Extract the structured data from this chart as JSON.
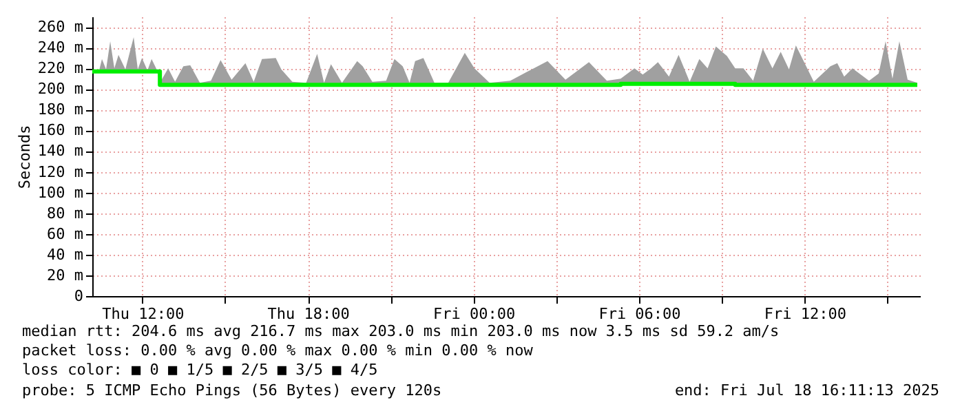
{
  "chart_data": {
    "type": "line",
    "ylabel": "Seconds",
    "x": [
      "2025-07-17T10:11",
      "2025-07-17T10:26",
      "2025-07-17T10:32",
      "2025-07-17T10:41",
      "2025-07-17T10:50",
      "2025-07-17T10:59",
      "2025-07-17T11:08",
      "2025-07-17T11:23",
      "2025-07-17T11:41",
      "2025-07-17T11:50",
      "2025-07-17T11:59",
      "2025-07-17T12:11",
      "2025-07-17T12:20",
      "2025-07-17T12:32",
      "2025-07-17T12:38",
      "2025-07-17T12:56",
      "2025-07-17T13:11",
      "2025-07-17T13:29",
      "2025-07-17T13:44",
      "2025-07-17T14:05",
      "2025-07-17T14:29",
      "2025-07-17T14:50",
      "2025-07-17T15:14",
      "2025-07-17T15:44",
      "2025-07-17T16:02",
      "2025-07-17T16:20",
      "2025-07-17T16:50",
      "2025-07-17T17:02",
      "2025-07-17T17:26",
      "2025-07-17T17:56",
      "2025-07-17T18:20",
      "2025-07-17T18:35",
      "2025-07-17T18:50",
      "2025-07-17T19:14",
      "2025-07-17T19:47",
      "2025-07-17T19:59",
      "2025-07-17T20:20",
      "2025-07-17T20:50",
      "2025-07-17T21:08",
      "2025-07-17T21:26",
      "2025-07-17T21:41",
      "2025-07-17T21:53",
      "2025-07-17T22:11",
      "2025-07-17T22:35",
      "2025-07-17T23:05",
      "2025-07-17T23:41",
      "2025-07-18T00:02",
      "2025-07-18T00:35",
      "2025-07-18T01:20",
      "2025-07-18T02:11",
      "2025-07-18T02:41",
      "2025-07-18T03:20",
      "2025-07-18T04:11",
      "2025-07-18T04:50",
      "2025-07-18T05:20",
      "2025-07-18T05:50",
      "2025-07-18T06:08",
      "2025-07-18T06:26",
      "2025-07-18T06:41",
      "2025-07-18T07:05",
      "2025-07-18T07:26",
      "2025-07-18T07:50",
      "2025-07-18T08:11",
      "2025-07-18T08:29",
      "2025-07-18T08:47",
      "2025-07-18T09:11",
      "2025-07-18T09:29",
      "2025-07-18T09:47",
      "2025-07-18T10:08",
      "2025-07-18T10:29",
      "2025-07-18T10:50",
      "2025-07-18T11:08",
      "2025-07-18T11:26",
      "2025-07-18T11:41",
      "2025-07-18T12:20",
      "2025-07-18T12:56",
      "2025-07-18T13:11",
      "2025-07-18T13:26",
      "2025-07-18T13:44",
      "2025-07-18T14:20",
      "2025-07-18T14:41",
      "2025-07-18T14:56",
      "2025-07-18T15:11",
      "2025-07-18T15:26",
      "2025-07-18T15:44",
      "2025-07-18T16:05"
    ],
    "series": [
      {
        "type": "step",
        "color": "#00ee00",
        "values": [
          217,
          217,
          217,
          217,
          217,
          217,
          217,
          217,
          217,
          217,
          217,
          217,
          217,
          217,
          204,
          204,
          204,
          204,
          204,
          204,
          204,
          204,
          204,
          204,
          204,
          204,
          204,
          204,
          204,
          204,
          204,
          204,
          204,
          204,
          204,
          204,
          204,
          204,
          204,
          204,
          204,
          204,
          204,
          204,
          204,
          204,
          204,
          204,
          204,
          204,
          204,
          204,
          204,
          204,
          205,
          205,
          205,
          205,
          205,
          205,
          205,
          205,
          205,
          205,
          205,
          205,
          204,
          204,
          204,
          204,
          204,
          204,
          204,
          204,
          204,
          204,
          204,
          204,
          204,
          204,
          204,
          204,
          204,
          204,
          204,
          204
        ],
        "lower": [
          217,
          217,
          217,
          217,
          217,
          217,
          217,
          217,
          217,
          217,
          217,
          217,
          217,
          217,
          204,
          204,
          204,
          204,
          204,
          204,
          204,
          204,
          204,
          204,
          204,
          204,
          204,
          204,
          204,
          204,
          204,
          204,
          204,
          204,
          204,
          204,
          204,
          204,
          204,
          204,
          204,
          204,
          204,
          204,
          204,
          204,
          204,
          204,
          204,
          204,
          204,
          204,
          204,
          204,
          205,
          205,
          205,
          205,
          205,
          205,
          205,
          205,
          205,
          205,
          205,
          205,
          204,
          204,
          204,
          204,
          204,
          204,
          204,
          204,
          204,
          204,
          204,
          204,
          204,
          204,
          204,
          204,
          204,
          204,
          204,
          204
        ],
        "upper": [
          219,
          218,
          229,
          219,
          246,
          220,
          233,
          219,
          250,
          219,
          230,
          218,
          229,
          218,
          206,
          220,
          207,
          222,
          223,
          206,
          208,
          228,
          209,
          225,
          207,
          229,
          230,
          219,
          207,
          206,
          234,
          206,
          224,
          206,
          227,
          222,
          207,
          208,
          229,
          222,
          206,
          227,
          230,
          206,
          206,
          235,
          220,
          206,
          208,
          220,
          227,
          209,
          226,
          208,
          210,
          220,
          214,
          220,
          226,
          212,
          233,
          207,
          229,
          220,
          241,
          232,
          220,
          220,
          208,
          239,
          220,
          236,
          219,
          242,
          207,
          222,
          225,
          212,
          220,
          208,
          215,
          246,
          210,
          246,
          209,
          206
        ]
      }
    ],
    "xlim": [
      "2025-07-17T10:11",
      "2025-07-18T16:11"
    ],
    "xticks": [
      {
        "value": "2025-07-17T12:00",
        "label": "Thu 12:00"
      },
      {
        "value": "2025-07-17T15:00",
        "label": null
      },
      {
        "value": "2025-07-17T18:00",
        "label": "Thu 18:00"
      },
      {
        "value": "2025-07-17T21:00",
        "label": null
      },
      {
        "value": "2025-07-18T00:00",
        "label": "Fri 00:00"
      },
      {
        "value": "2025-07-18T03:00",
        "label": null
      },
      {
        "value": "2025-07-18T06:00",
        "label": "Fri 06:00"
      },
      {
        "value": "2025-07-18T09:00",
        "label": null
      },
      {
        "value": "2025-07-18T12:00",
        "label": "Fri 12:00"
      },
      {
        "value": "2025-07-18T15:00",
        "label": null
      }
    ],
    "ylim": [
      0,
      270
    ],
    "yticks": [
      0,
      {
        "value": 20,
        "label": "20 m"
      },
      {
        "value": 40,
        "label": "40 m"
      },
      {
        "value": 60,
        "label": "60 m"
      },
      {
        "value": 80,
        "label": "80 m"
      },
      {
        "value": 100,
        "label": "100 m"
      },
      {
        "value": 120,
        "label": "120 m"
      },
      {
        "value": 140,
        "label": "140 m"
      },
      {
        "value": 160,
        "label": "160 m"
      },
      {
        "value": 180,
        "label": "180 m"
      },
      {
        "value": 200,
        "label": "200 m"
      },
      {
        "value": 220,
        "label": "220 m"
      },
      {
        "value": 240,
        "label": "240 m"
      },
      {
        "value": 260,
        "label": "260 m"
      }
    ],
    "grid": true,
    "marker": "none",
    "line_style": "solid",
    "annotations": [
      "median rtt:  204.6 ms avg  216.7 ms max  203.0 ms min  203.0 ms now  3.5 ms sd  59.2   am/s",
      "packet loss: 0.00 % avg  0.00 % max  0.00 % min  0.00 % now",
      "loss color:  ■ 0  ■ 1/5  ■ 2/5  ■ 3/5  ■ 4/5",
      "probe:       5 ICMP Echo Pings (56 Bytes) every 120s",
      "end: Fri Jul 18 16:11:13 2025"
    ]
  }
}
